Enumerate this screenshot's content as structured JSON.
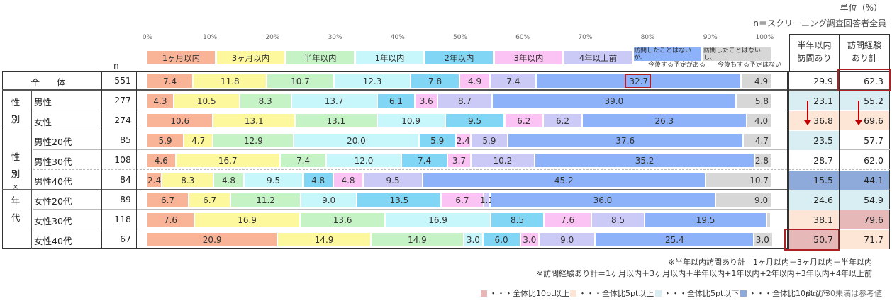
{
  "header": {
    "unit": "単位（%）",
    "n_note": "n＝スクリーニング調査回答者全員",
    "n_label": "n"
  },
  "colors": {
    "1m": "#f9b396",
    "3m": "#fdf89e",
    "6m": "#c6f3c6",
    "1y": "#c8f7fb",
    "2y": "#82d6f5",
    "3y": "#fbc3f3",
    "4y": "#cbcaf7",
    "future": "#8eb2f9",
    "never": "#d7d7d7",
    "hi10": "#e6b8b8",
    "hi5": "#fde6d6",
    "lo5": "#d9eef2",
    "lo10": "#8eaadb",
    "highlight_border": "#b01f24",
    "arrow": "#c00000"
  },
  "chart_data": {
    "type": "bar",
    "orientation": "horizontal-stacked-100",
    "title": "",
    "xlabel": "",
    "ylabel": "",
    "xlim": [
      0,
      100
    ],
    "x_ticks": [
      "0%",
      "10%",
      "20%",
      "30%",
      "40%",
      "50%",
      "60%",
      "70%",
      "80%",
      "90%",
      "100%"
    ],
    "legend_position": "top",
    "series_names": [
      "1ヶ月以内",
      "3ヶ月以内",
      "半年以内",
      "1年以内",
      "2年以内",
      "3年以内",
      "4年以上前",
      "訪問したことはないが、今後する予定がある",
      "訪問したことはないし、今後もする予定はない"
    ],
    "categories": [
      "全 体",
      "男性",
      "女性",
      "男性20代",
      "男性30代",
      "男性40代",
      "女性20代",
      "女性30代",
      "女性40代"
    ],
    "n": [
      551,
      277,
      274,
      85,
      108,
      84,
      89,
      118,
      67
    ],
    "series": [
      {
        "name": "1ヶ月以内",
        "values": [
          7.4,
          4.3,
          10.6,
          5.9,
          4.6,
          2.4,
          6.7,
          7.6,
          20.9
        ]
      },
      {
        "name": "3ヶ月以内",
        "values": [
          11.8,
          10.5,
          13.1,
          4.7,
          16.7,
          8.3,
          6.7,
          16.9,
          14.9
        ]
      },
      {
        "name": "半年以内",
        "values": [
          10.7,
          8.3,
          13.1,
          12.9,
          7.4,
          4.8,
          11.2,
          13.6,
          14.9
        ]
      },
      {
        "name": "1年以内",
        "values": [
          12.3,
          13.7,
          10.9,
          20.0,
          12.0,
          9.5,
          9.0,
          16.9,
          3.0
        ]
      },
      {
        "name": "2年以内",
        "values": [
          7.8,
          6.1,
          9.5,
          5.9,
          7.4,
          4.8,
          13.5,
          8.5,
          6.0
        ]
      },
      {
        "name": "3年以内",
        "values": [
          4.9,
          3.6,
          6.2,
          2.4,
          3.7,
          4.8,
          6.7,
          7.6,
          3.0
        ]
      },
      {
        "name": "4年以上前",
        "values": [
          7.4,
          8.7,
          6.2,
          5.9,
          10.2,
          9.5,
          1.1,
          8.5,
          9.0
        ]
      },
      {
        "name": "訪問したことはないが、今後する予定がある",
        "values": [
          32.7,
          39.0,
          26.3,
          37.6,
          35.2,
          45.2,
          36.0,
          19.5,
          25.4
        ]
      },
      {
        "name": "訪問したことはないし、今後もする予定はない",
        "values": [
          4.9,
          5.8,
          4.0,
          4.7,
          2.8,
          10.7,
          9.0,
          0.6,
          3.0
        ]
      }
    ],
    "summary_columns": [
      {
        "name": "半年以内訪問あり",
        "values": [
          29.9,
          23.1,
          36.8,
          23.5,
          28.7,
          15.5,
          24.6,
          38.1,
          50.7
        ]
      },
      {
        "name": "訪問経験あり計",
        "values": [
          62.3,
          55.2,
          69.6,
          57.7,
          62.0,
          44.1,
          54.9,
          79.6,
          71.7
        ]
      }
    ]
  },
  "legend": [
    {
      "label": "1ヶ月以内"
    },
    {
      "label": "3ヶ月以内"
    },
    {
      "label": "半年以内"
    },
    {
      "label": "1年以内"
    },
    {
      "label": "2年以内"
    },
    {
      "label": "3年以内"
    },
    {
      "label": "4年以上前"
    },
    {
      "label_top": "訪問したことはないが、",
      "label_bottom": "今後する予定がある"
    },
    {
      "label_top": "訪問したことはないし、",
      "label_bottom": "今後もする予定はない"
    }
  ],
  "table": {
    "groups": [
      {
        "label_lines": [
          "性",
          "別"
        ]
      },
      {
        "label_lines": [
          "性",
          "別",
          "×",
          "年",
          "代"
        ]
      }
    ],
    "col_headers": [
      {
        "line1": "半年以内",
        "line2": "訪問あり"
      },
      {
        "line1": "訪問経験",
        "line2": "あり計"
      }
    ],
    "rows": [
      {
        "label": "全 体",
        "n": "551",
        "labels": [
          "7.4",
          "11.8",
          "10.7",
          "12.3",
          "7.8",
          "4.9",
          "7.4",
          "32.7",
          "4.9"
        ],
        "sum1": "29.9",
        "sum2": "62.3",
        "sum1_bg": "",
        "sum2_bg": ""
      },
      {
        "label": "男性",
        "n": "277",
        "labels": [
          "4.3",
          "10.5",
          "8.3",
          "13.7",
          "6.1",
          "3.6",
          "8.7",
          "39.0",
          "5.8"
        ],
        "sum1": "23.1",
        "sum2": "55.2",
        "sum1_bg": "lo5",
        "sum2_bg": "lo5"
      },
      {
        "label": "女性",
        "n": "274",
        "labels": [
          "10.6",
          "13.1",
          "13.1",
          "10.9",
          "9.5",
          "6.2",
          "6.2",
          "26.3",
          "4.0"
        ],
        "sum1": "36.8",
        "sum2": "69.6",
        "sum1_bg": "hi5",
        "sum2_bg": "hi5"
      },
      {
        "label": "男性20代",
        "n": "85",
        "labels": [
          "5.9",
          "4.7",
          "12.9",
          "20.0",
          "5.9",
          "2.4",
          "5.9",
          "37.6",
          "4.7"
        ],
        "sum1": "23.5",
        "sum2": "57.7",
        "sum1_bg": "lo5",
        "sum2_bg": ""
      },
      {
        "label": "男性30代",
        "n": "108",
        "labels": [
          "4.6",
          "16.7",
          "7.4",
          "12.0",
          "7.4",
          "3.7",
          "10.2",
          "35.2",
          "2.8"
        ],
        "sum1": "28.7",
        "sum2": "62.0",
        "sum1_bg": "",
        "sum2_bg": ""
      },
      {
        "label": "男性40代",
        "n": "84",
        "labels": [
          "2.4",
          "8.3",
          "4.8",
          "9.5",
          "4.8",
          "4.8",
          "9.5",
          "45.2",
          "10.7"
        ],
        "sum1": "15.5",
        "sum2": "44.1",
        "sum1_bg": "lo10",
        "sum2_bg": "lo10"
      },
      {
        "label": "女性20代",
        "n": "89",
        "labels": [
          "6.7",
          "6.7",
          "11.2",
          "9.0",
          "13.5",
          "6.7",
          "1.1",
          "36.0",
          "9.0"
        ],
        "sum1": "24.6",
        "sum2": "54.9",
        "sum1_bg": "lo5",
        "sum2_bg": "lo5"
      },
      {
        "label": "女性30代",
        "n": "118",
        "labels": [
          "7.6",
          "16.9",
          "13.6",
          "16.9",
          "8.5",
          "7.6",
          "8.5",
          "19.5",
          ""
        ],
        "sum1": "38.1",
        "sum2": "79.6",
        "sum1_bg": "hi5",
        "sum2_bg": "hi10"
      },
      {
        "label": "女性40代",
        "n": "67",
        "labels": [
          "20.9",
          "14.9",
          "14.9",
          "3.0",
          "6.0",
          "3.0",
          "9.0",
          "25.4",
          "3.0"
        ],
        "sum1": "50.7",
        "sum2": "71.7",
        "sum1_bg": "hi10",
        "sum2_bg": "hi5"
      }
    ]
  },
  "footnotes": {
    "line1": "※半年以内訪問あり計＝1ヶ月以内＋3ヶ月以内＋半年以内",
    "line2": "※訪問経験あり計＝1ヶ月以内＋3ヶ月以内＋半年以内+1年以内+2年以内+3年以内+4年以上前",
    "keys": [
      {
        "label": "・・・全体比10pt以上",
        "color": "hi10"
      },
      {
        "label": "・・・全体比5pt以上",
        "color": "hi5"
      },
      {
        "label": "・・・全体比5pt以下",
        "color": "lo5"
      },
      {
        "label": "・・・全体比10pt以下",
        "color": "lo10"
      }
    ],
    "reference_note": "※nが30未満は参考値"
  }
}
